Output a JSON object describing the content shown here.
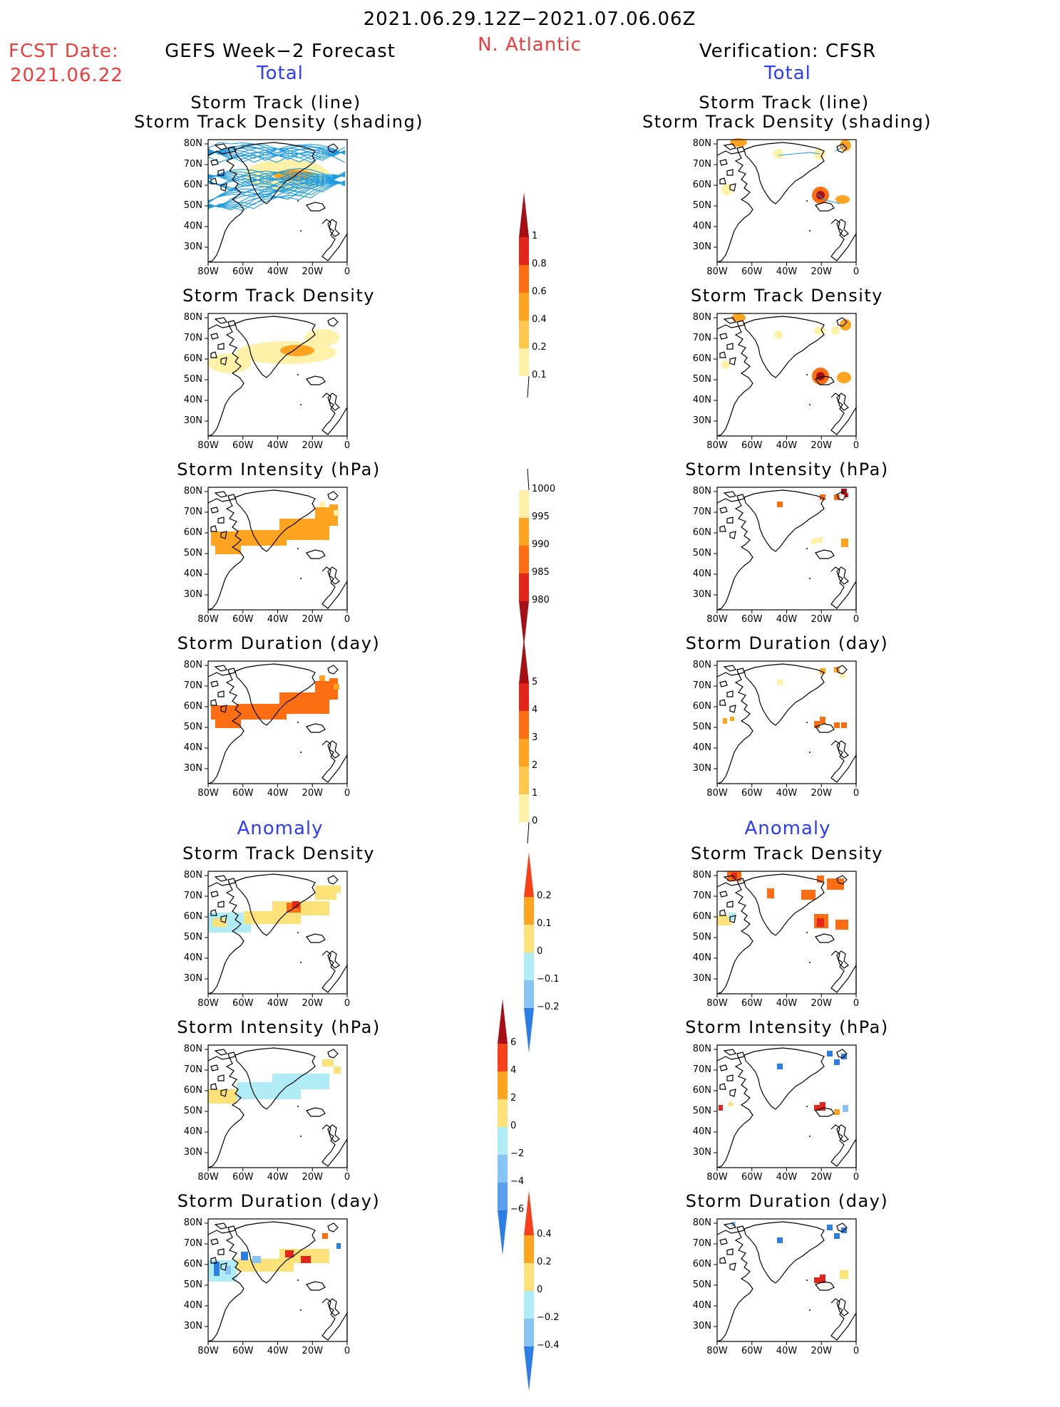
{
  "header": {
    "date_range": "2021.06.29.12Z−2021.07.06.06Z",
    "region": "N. Atlantic",
    "fcst_label": "FCST Date:",
    "fcst_date": "2021.06.22",
    "left_title": "GEFS Week−2 Forecast",
    "right_title": "Verification: CFSR",
    "total_label": "Total",
    "anomaly_label": "Anomaly"
  },
  "panel_titles": {
    "track_line": "Storm Track (line)",
    "track_density_shading": "Storm Track Density (shading)",
    "track_density": "Storm Track Density",
    "intensity": "Storm Intensity (hPa)",
    "duration": "Storm Duration (day)"
  },
  "axes": {
    "lat_labels": [
      "80N",
      "70N",
      "60N",
      "50N",
      "40N",
      "30N"
    ],
    "lon_labels": [
      "80W",
      "60W",
      "40W",
      "20W",
      "0"
    ]
  },
  "colorbars": {
    "density": {
      "labels": [
        "1",
        "0.8",
        "0.6",
        "0.4",
        "0.2",
        "0.1"
      ],
      "colors": [
        "#a50f15",
        "#e3261c",
        "#fd6d12",
        "#fea421",
        "#fec850",
        "#fff2a8"
      ]
    },
    "intensity": {
      "labels": [
        "1000",
        "995",
        "990",
        "985",
        "980"
      ],
      "colors": [
        "#fff2a8",
        "#fea421",
        "#fd6d12",
        "#e3261c",
        "#a50f15"
      ]
    },
    "duration": {
      "labels": [
        "5",
        "4",
        "3",
        "2",
        "1",
        "0"
      ],
      "colors": [
        "#a50f15",
        "#e3261c",
        "#fd6d12",
        "#fea421",
        "#fec850",
        "#fff2a8"
      ]
    },
    "anom_density": {
      "labels": [
        "0.2",
        "0.1",
        "0",
        "−0.1",
        "−0.2"
      ],
      "colors": [
        "#f5421b",
        "#fea421",
        "#fde27a",
        "#b0ecf6",
        "#88c4f5",
        "#2d7ee3"
      ]
    },
    "anom_intensity": {
      "labels": [
        "6",
        "4",
        "2",
        "0",
        "−2",
        "−4",
        "−6"
      ],
      "colors": [
        "#a50f15",
        "#f5421b",
        "#fea421",
        "#fde27a",
        "#b0ecf6",
        "#88c4f5",
        "#5a9ff0",
        "#2d7ee3"
      ]
    },
    "anom_duration": {
      "labels": [
        "0.4",
        "0.2",
        "0",
        "−0.2",
        "−0.4"
      ],
      "colors": [
        "#f5421b",
        "#fea421",
        "#fde27a",
        "#b0ecf6",
        "#88c4f5",
        "#2d7ee3"
      ]
    }
  },
  "colors": {
    "forecast_track": "#1e9be0",
    "coast": "#000000"
  }
}
